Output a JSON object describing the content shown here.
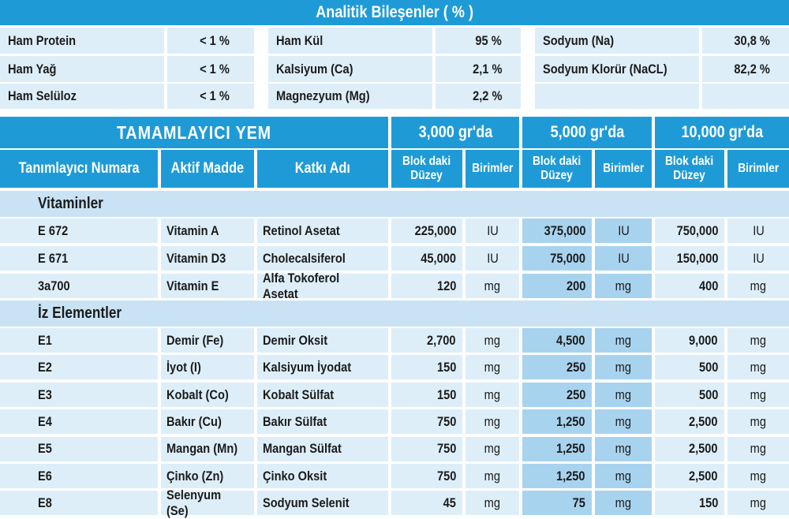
{
  "analytic": {
    "title": "Analitik Bileşenler ( % )",
    "rows": [
      [
        "Ham Protein",
        "< 1 %",
        "Ham Kül",
        "95 %",
        "Sodyum (Na)",
        "30,8 %"
      ],
      [
        "Ham Yağ",
        "< 1 %",
        "Kalsiyum (Ca)",
        "2,1 %",
        "Sodyum Klorür (NaCL)",
        "82,2 %"
      ],
      [
        "Ham Selüloz",
        "< 1 %",
        "Magnezyum (Mg)",
        "2,2 %"
      ]
    ]
  },
  "table": {
    "title": "TAMAMLAYICI YEM",
    "groups": [
      "3,000 gr'da",
      "5,000 gr'da",
      "10,000 gr'da"
    ],
    "columns": [
      "Tanımlayıcı Numara",
      "Aktif Madde",
      "Katkı Adı",
      "Blok daki\nDüzey",
      "Birimler",
      "Blok daki\nDüzey",
      "Birimler",
      "Blok daki\nDüzey",
      "Birimler"
    ],
    "sections": [
      {
        "name": "Vitaminler",
        "rows": [
          [
            "E 672",
            "Vitamin A",
            "Retinol Asetat",
            "225,000",
            "IU",
            "375,000",
            "IU",
            "750,000",
            "IU"
          ],
          [
            "E 671",
            "Vitamin D3",
            "Cholecalsiferol",
            "45,000",
            "IU",
            "75,000",
            "IU",
            "150,000",
            "IU"
          ],
          [
            "3a700",
            "Vitamin E",
            "Alfa Tokoferol Asetat",
            "120",
            "mg",
            "200",
            "mg",
            "400",
            "mg"
          ]
        ]
      },
      {
        "name": "İz Elementler",
        "rows": [
          [
            "E1",
            "Demir (Fe)",
            "Demir Oksit",
            "2,700",
            "mg",
            "4,500",
            "mg",
            "9,000",
            "mg"
          ],
          [
            "E2",
            "İyot (I)",
            "Kalsiyum İyodat",
            "150",
            "mg",
            "250",
            "mg",
            "500",
            "mg"
          ],
          [
            "E3",
            "Kobalt (Co)",
            "Kobalt Sülfat",
            "150",
            "mg",
            "250",
            "mg",
            "500",
            "mg"
          ],
          [
            "E4",
            "Bakır (Cu)",
            "Bakır Sülfat",
            "750",
            "mg",
            "1,250",
            "mg",
            "2,500",
            "mg"
          ],
          [
            "E5",
            "Mangan (Mn)",
            "Mangan Sülfat",
            "750",
            "mg",
            "1,250",
            "mg",
            "2,500",
            "mg"
          ],
          [
            "E6",
            "Çinko (Zn)",
            "Çinko Oksit",
            "750",
            "mg",
            "1,250",
            "mg",
            "2,500",
            "mg"
          ],
          [
            "E8",
            "Selenyum (Se)",
            "Sodyum Selenit",
            "45",
            "mg",
            "75",
            "mg",
            "150",
            "mg"
          ]
        ]
      }
    ]
  }
}
